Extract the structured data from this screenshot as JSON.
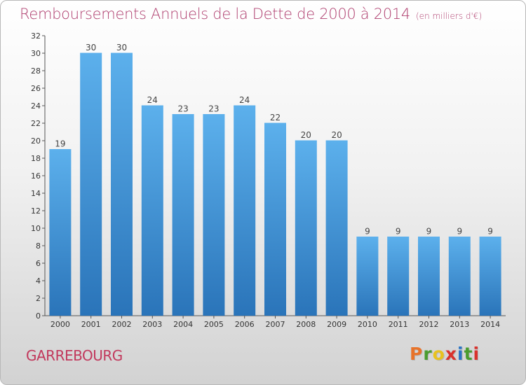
{
  "chart_data": {
    "type": "bar",
    "title": "Remboursements Annuels de la Dette de 2000 à 2014",
    "subtitle": "(en milliers d'€)",
    "categories": [
      "2000",
      "2001",
      "2002",
      "2003",
      "2004",
      "2005",
      "2006",
      "2007",
      "2008",
      "2009",
      "2010",
      "2011",
      "2012",
      "2013",
      "2014"
    ],
    "values": [
      19,
      30,
      30,
      24,
      23,
      23,
      24,
      22,
      20,
      20,
      9,
      9,
      9,
      9,
      9
    ],
    "ylim": [
      0,
      32
    ],
    "yticks": [
      0,
      2,
      4,
      6,
      8,
      10,
      12,
      14,
      16,
      18,
      20,
      22,
      24,
      26,
      28,
      30,
      32
    ],
    "grid": false,
    "bar_color": "#3d8fd6",
    "bar_color_light": "#5cb0ec",
    "bar_color_dark": "#2a74b9"
  },
  "footer": {
    "town": "GARREBOURG",
    "logo_letters": [
      "P",
      "r",
      "o",
      "x",
      "i",
      "t",
      "i"
    ],
    "logo_colors": [
      "#e8732a",
      "#4a9c2f",
      "#e8c21f",
      "#d9322d",
      "#2b74c5",
      "#4a9c2f",
      "#d9322d"
    ]
  }
}
